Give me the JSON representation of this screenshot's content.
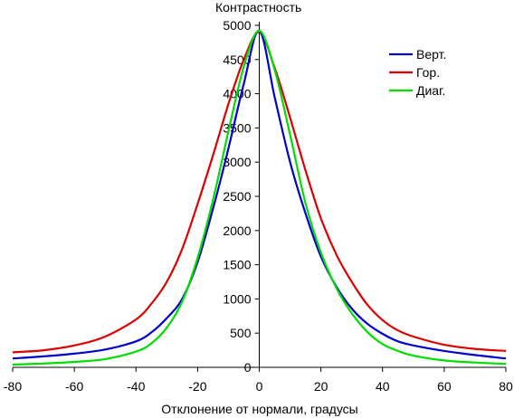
{
  "chart_data": {
    "type": "line",
    "ylabel": "Контрастность",
    "xlabel": "Отклонение от нормали, градусы",
    "xlim": [
      -80,
      80
    ],
    "ylim": [
      0,
      5000
    ],
    "x_ticks": [
      -80,
      -60,
      -40,
      -20,
      0,
      20,
      40,
      60,
      80
    ],
    "y_ticks": [
      0,
      500,
      1000,
      1500,
      2000,
      2500,
      3000,
      3500,
      4000,
      4500,
      5000
    ],
    "grid": false,
    "legend_position": "top-right",
    "series": [
      {
        "name": "Верт.",
        "color": "#0000cc",
        "x": [
          -80,
          -70,
          -60,
          -50,
          -40,
          -35,
          -30,
          -25,
          -20,
          -15,
          -10,
          -5,
          0,
          5,
          10,
          15,
          20,
          25,
          30,
          35,
          40,
          45,
          50,
          60,
          70,
          80
        ],
        "y": [
          130,
          160,
          200,
          260,
          380,
          510,
          720,
          1000,
          1540,
          2320,
          3200,
          4150,
          4920,
          3950,
          3000,
          2250,
          1620,
          1180,
          860,
          640,
          490,
          380,
          320,
          240,
          180,
          130
        ]
      },
      {
        "name": "Гор.",
        "color": "#dd0000",
        "x": [
          -80,
          -70,
          -60,
          -50,
          -40,
          -35,
          -30,
          -25,
          -20,
          -15,
          -10,
          -5,
          0,
          5,
          10,
          15,
          20,
          25,
          30,
          35,
          40,
          45,
          50,
          60,
          70,
          80
        ],
        "y": [
          220,
          250,
          320,
          450,
          700,
          930,
          1250,
          1730,
          2390,
          3100,
          3850,
          4500,
          4900,
          4380,
          3650,
          2880,
          2180,
          1650,
          1250,
          920,
          690,
          540,
          450,
          330,
          270,
          240
        ]
      },
      {
        "name": "Диаг.",
        "color": "#00dd00",
        "x": [
          -80,
          -70,
          -60,
          -50,
          -40,
          -35,
          -30,
          -25,
          -20,
          -15,
          -10,
          -5,
          0,
          5,
          10,
          15,
          20,
          25,
          30,
          35,
          40,
          45,
          50,
          60,
          70,
          80
        ],
        "y": [
          40,
          55,
          80,
          120,
          230,
          350,
          580,
          960,
          1600,
          2450,
          3450,
          4400,
          4920,
          4350,
          3400,
          2400,
          1680,
          1160,
          790,
          520,
          340,
          240,
          170,
          100,
          70,
          50
        ]
      }
    ]
  }
}
